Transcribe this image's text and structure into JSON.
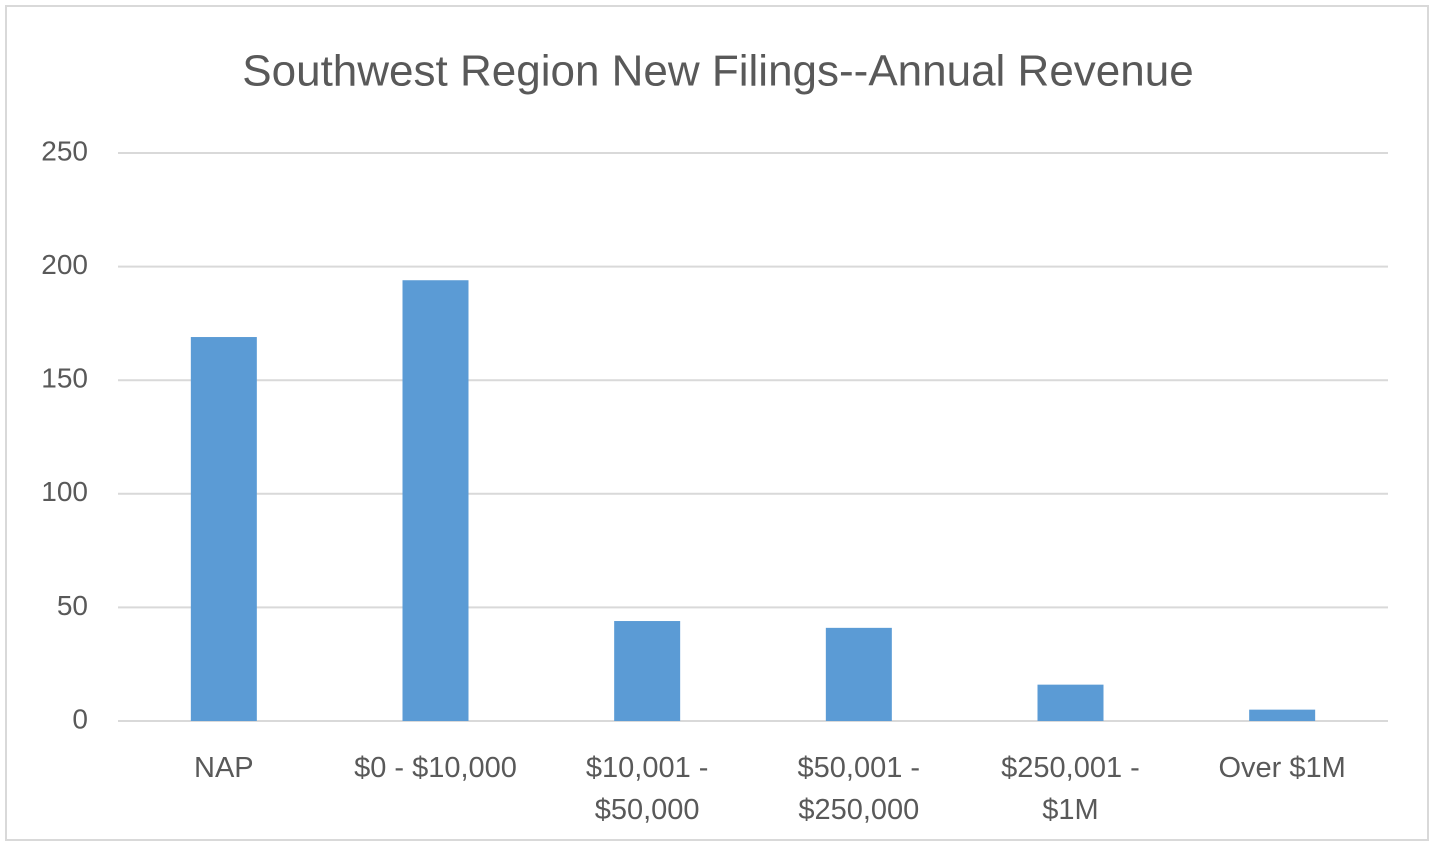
{
  "chart_data": {
    "type": "bar",
    "title": "Southwest Region New Filings--Annual Revenue",
    "categories": [
      "NAP",
      "$0 - $10,000",
      "$10,001 - $50,000",
      "$50,001 - $250,000",
      "$250,001 - $1M",
      "Over $1M"
    ],
    "values": [
      169,
      194,
      44,
      41,
      16,
      5
    ],
    "color": "#5b9bd5",
    "ylim": [
      0,
      250
    ],
    "yticks": [
      0,
      50,
      100,
      150,
      200,
      250
    ],
    "grid": true
  }
}
